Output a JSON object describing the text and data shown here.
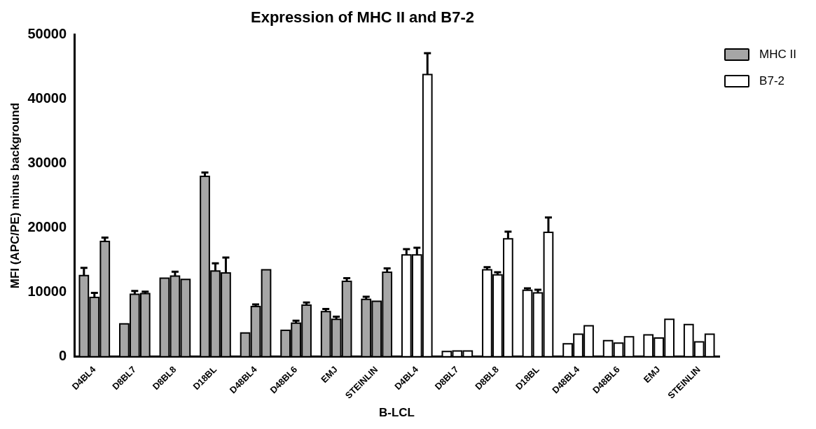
{
  "chart_data": {
    "type": "bar",
    "title": "Expression of MHC II and B7-2",
    "xlabel": "B-LCL",
    "ylabel": "MFI (APC/PE) minus background",
    "categories": [
      "D4BL4",
      "D8BL7",
      "D8BL8",
      "D18BL",
      "D48BL4",
      "D48BL6",
      "EMJ",
      "STEINLIN",
      "D4BL4",
      "D8BL7",
      "D8BL8",
      "D18BL",
      "D48BL4",
      "D48BL6",
      "EMJ",
      "STEINLIN"
    ],
    "series": [
      {
        "name": "MHC II",
        "color": "#a6a6a6",
        "values": [
          12600,
          5100,
          12200,
          28000,
          3700,
          4100,
          7000,
          8900,
          null,
          null,
          null,
          null,
          null,
          null,
          null,
          null
        ],
        "errors": [
          1200,
          null,
          null,
          600,
          null,
          null,
          400,
          400,
          null,
          null,
          null,
          null,
          null,
          null,
          null,
          null
        ]
      },
      {
        "color": "#a6a6a6",
        "values": [
          9200,
          9700,
          12500,
          13300,
          7800,
          5200,
          5800,
          8600,
          null,
          null,
          null,
          null,
          null,
          null,
          null,
          null
        ],
        "errors": [
          700,
          500,
          700,
          1200,
          300,
          400,
          400,
          null,
          null,
          null,
          null,
          null,
          null,
          null,
          null,
          null
        ]
      },
      {
        "color": "#a6a6a6",
        "values": [
          17900,
          9800,
          12000,
          13000,
          13500,
          8000,
          11700,
          13100,
          null,
          null,
          null,
          null,
          null,
          null,
          null,
          null
        ],
        "errors": [
          600,
          300,
          null,
          2400,
          null,
          400,
          500,
          600,
          null,
          null,
          null,
          null,
          null,
          null,
          null,
          null
        ]
      },
      {
        "name": "B7-2",
        "color": "#ffffff",
        "values": [
          null,
          null,
          null,
          null,
          null,
          null,
          null,
          null,
          15800,
          800,
          13500,
          10300,
          2000,
          2500,
          3400,
          5000
        ],
        "errors": [
          null,
          null,
          null,
          null,
          null,
          null,
          null,
          null,
          900,
          null,
          400,
          300,
          null,
          null,
          null,
          null
        ]
      },
      {
        "color": "#ffffff",
        "values": [
          null,
          null,
          null,
          null,
          null,
          null,
          null,
          null,
          15800,
          900,
          12700,
          9900,
          3500,
          2100,
          2900,
          2300
        ],
        "errors": [
          null,
          null,
          null,
          null,
          null,
          null,
          null,
          null,
          1100,
          null,
          400,
          500,
          null,
          null,
          null,
          null
        ]
      },
      {
        "color": "#ffffff",
        "values": [
          null,
          null,
          null,
          null,
          null,
          null,
          null,
          null,
          43800,
          900,
          18300,
          19300,
          4800,
          3100,
          5800,
          3500
        ],
        "errors": [
          null,
          null,
          null,
          null,
          null,
          null,
          null,
          null,
          3300,
          null,
          1100,
          2300,
          null,
          null,
          null,
          null
        ]
      }
    ],
    "ylim": [
      0,
      50000
    ],
    "yticks": [
      0,
      10000,
      20000,
      30000,
      40000,
      50000
    ],
    "grid": false,
    "legend": "top right"
  }
}
